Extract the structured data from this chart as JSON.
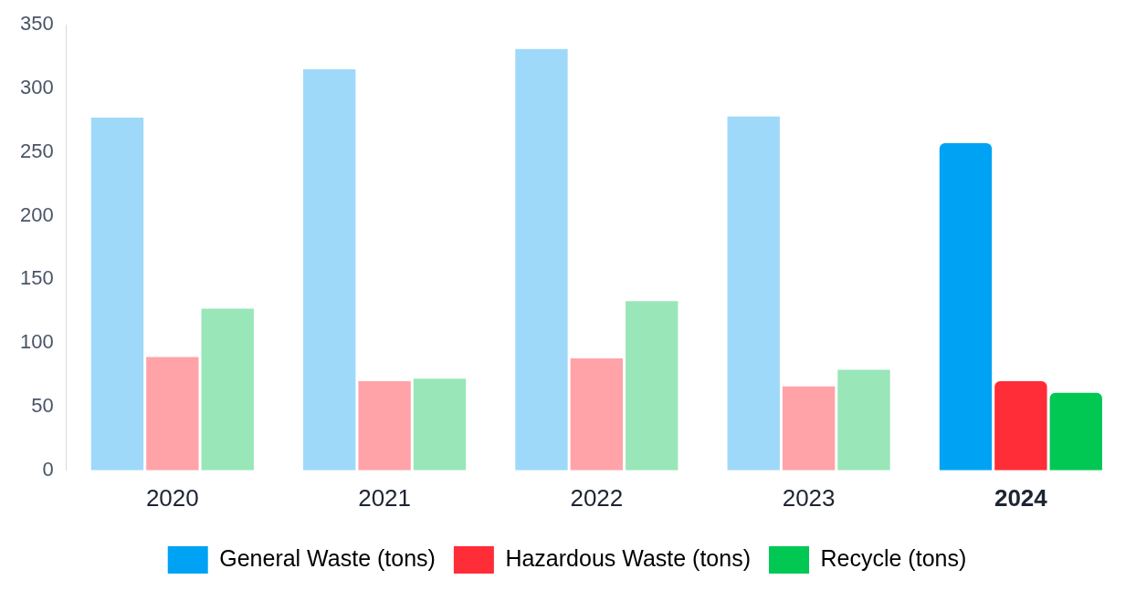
{
  "chart_data": {
    "type": "bar",
    "categories": [
      "2020",
      "2021",
      "2022",
      "2023",
      "2024"
    ],
    "series": [
      {
        "name": "General Waste (tons)",
        "color": "#00a3f4",
        "colors": [
          "#9fd9fa",
          "#9fd9fa",
          "#9fd9fa",
          "#9fd9fa",
          "#00a3f4"
        ],
        "values": [
          277,
          315,
          331,
          278,
          257
        ]
      },
      {
        "name": "Hazardous Waste (tons)",
        "color": "#ff2d37",
        "colors": [
          "#ffa3a8",
          "#ffa3a8",
          "#ffa3a8",
          "#ffa3a8",
          "#ff2d37"
        ],
        "values": [
          89,
          70,
          88,
          66,
          70
        ]
      },
      {
        "name": "Recycle (tons)",
        "color": "#00c853",
        "colors": [
          "#99e6b8",
          "#99e6b8",
          "#99e6b8",
          "#99e6b8",
          "#00c853"
        ],
        "values": [
          127,
          72,
          133,
          79,
          61
        ]
      }
    ],
    "ylim": [
      0,
      350
    ],
    "yticks": [
      0,
      50,
      100,
      150,
      200,
      250,
      300,
      350
    ],
    "grid": false,
    "legend": "bottom"
  }
}
